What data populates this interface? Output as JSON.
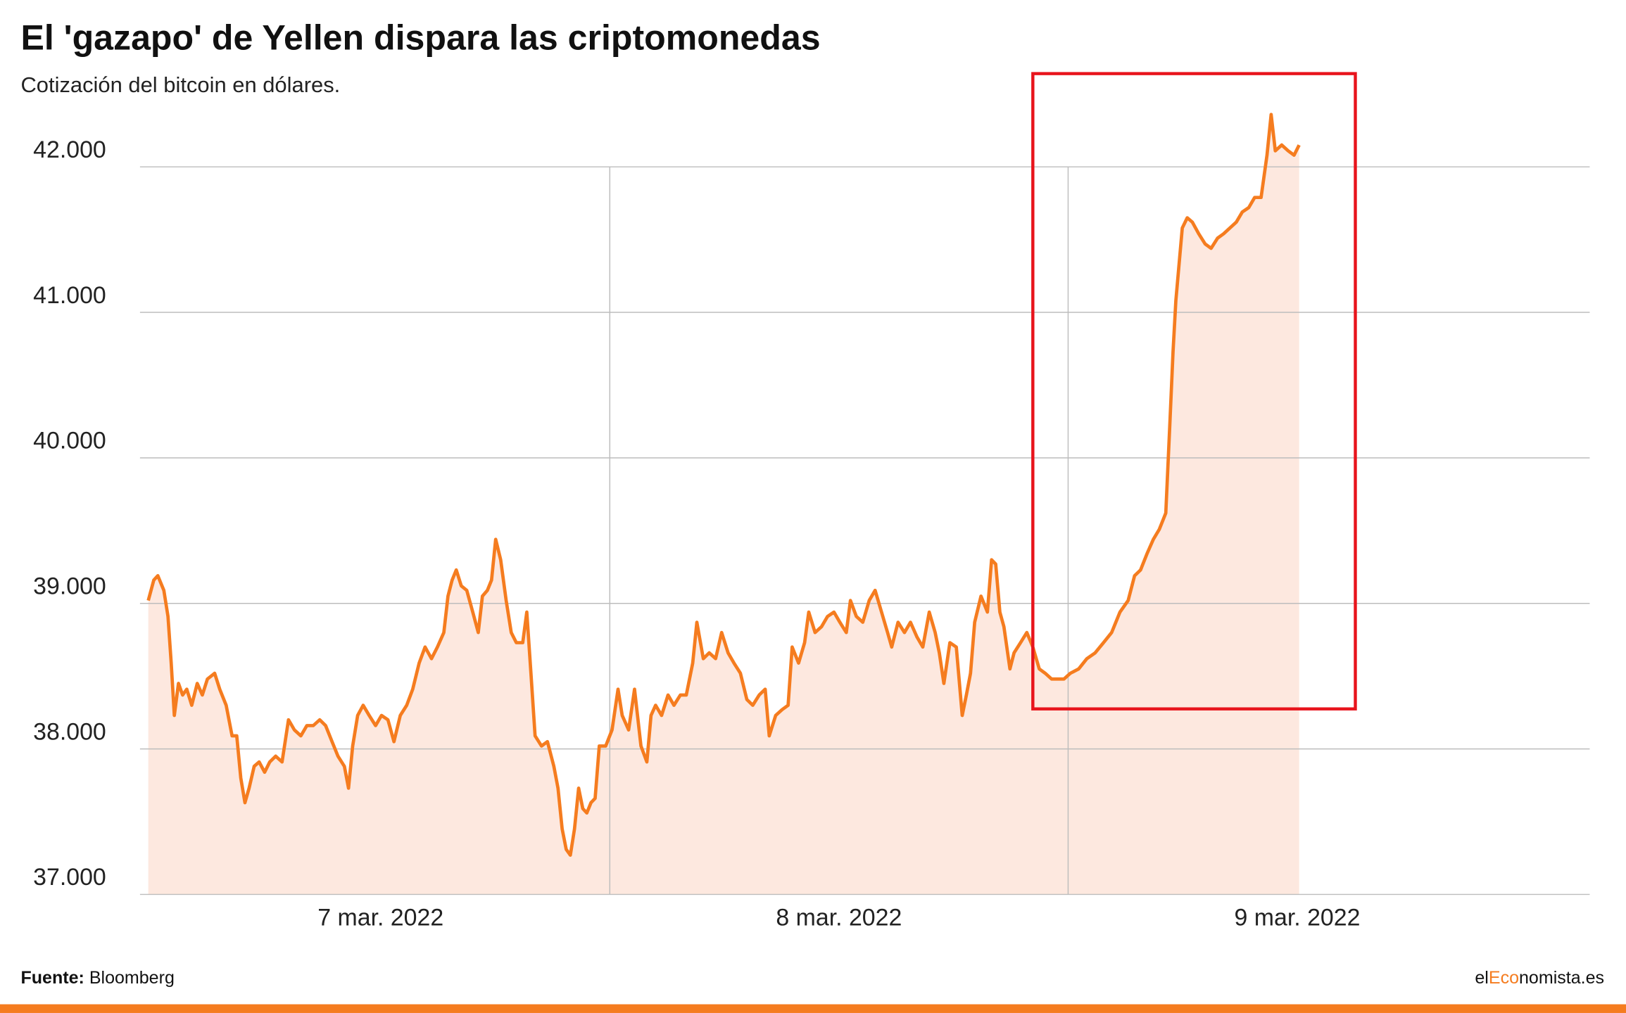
{
  "chart_data": {
    "type": "line",
    "title": "El 'gazapo' de Yellen dispara las criptomonedas",
    "subtitle": "Cotización del bitcoin en dólares.",
    "color": "#f57c1f",
    "fill_color": "#fde8df",
    "grid": true,
    "xlim": [
      -0.025,
      3.138
    ],
    "xticks": [
      {
        "value": 0.5,
        "label": "7 mar. 2022"
      },
      {
        "value": 1.5,
        "label": "8 mar. 2022"
      },
      {
        "value": 2.5,
        "label": "9 mar. 2022"
      }
    ],
    "xgrid": [
      1,
      2
    ],
    "ylim": [
      37000,
      42450
    ],
    "yticks": [
      {
        "value": 37000,
        "label": "37.000"
      },
      {
        "value": 38000,
        "label": "38.000"
      },
      {
        "value": 39000,
        "label": "39.000"
      },
      {
        "value": 40000,
        "label": "40.000"
      },
      {
        "value": 41000,
        "label": "41.000"
      },
      {
        "value": 42000,
        "label": "42.000"
      }
    ],
    "x": [
      -0.007,
      0.005,
      0.014,
      0.027,
      0.036,
      0.043,
      0.05,
      0.059,
      0.068,
      0.077,
      0.088,
      0.1,
      0.111,
      0.122,
      0.138,
      0.149,
      0.163,
      0.176,
      0.186,
      0.195,
      0.204,
      0.213,
      0.224,
      0.235,
      0.247,
      0.258,
      0.271,
      0.285,
      0.299,
      0.312,
      0.326,
      0.339,
      0.353,
      0.367,
      0.38,
      0.394,
      0.407,
      0.421,
      0.43,
      0.439,
      0.45,
      0.462,
      0.475,
      0.489,
      0.502,
      0.516,
      0.529,
      0.543,
      0.557,
      0.57,
      0.584,
      0.597,
      0.611,
      0.624,
      0.638,
      0.647,
      0.656,
      0.665,
      0.676,
      0.688,
      0.701,
      0.713,
      0.722,
      0.733,
      0.742,
      0.751,
      0.762,
      0.774,
      0.785,
      0.796,
      0.81,
      0.819,
      0.828,
      0.837,
      0.851,
      0.864,
      0.878,
      0.887,
      0.896,
      0.905,
      0.914,
      0.923,
      0.932,
      0.941,
      0.95,
      0.959,
      0.968,
      0.977,
      0.991,
      1.005,
      1.018,
      1.027,
      1.041,
      1.054,
      1.068,
      1.081,
      1.09,
      1.1,
      1.113,
      1.127,
      1.14,
      1.154,
      1.167,
      1.181,
      1.19,
      1.204,
      1.217,
      1.231,
      1.244,
      1.258,
      1.271,
      1.285,
      1.299,
      1.312,
      1.326,
      1.339,
      1.348,
      1.362,
      1.376,
      1.389,
      1.398,
      1.412,
      1.425,
      1.434,
      1.448,
      1.462,
      1.475,
      1.489,
      1.502,
      1.516,
      1.525,
      1.538,
      1.552,
      1.566,
      1.579,
      1.593,
      1.606,
      1.615,
      1.629,
      1.643,
      1.656,
      1.67,
      1.683,
      1.697,
      1.71,
      1.719,
      1.729,
      1.742,
      1.756,
      1.769,
      1.778,
      1.787,
      1.796,
      1.81,
      1.824,
      1.833,
      1.842,
      1.851,
      1.86,
      1.873,
      1.882,
      1.896,
      1.91,
      1.923,
      1.937,
      1.95,
      1.964,
      1.977,
      1.991,
      2.005,
      2.023,
      2.041,
      2.059,
      2.077,
      2.095,
      2.113,
      2.131,
      2.145,
      2.158,
      2.172,
      2.186,
      2.199,
      2.213,
      2.222,
      2.229,
      2.235,
      2.242,
      2.249,
      2.26,
      2.271,
      2.285,
      2.299,
      2.312,
      2.326,
      2.339,
      2.353,
      2.367,
      2.38,
      2.394,
      2.407,
      2.421,
      2.434,
      2.443,
      2.452,
      2.466,
      2.48,
      2.493,
      2.504
    ],
    "values": [
      39020,
      39160,
      39190,
      39090,
      38910,
      38590,
      38230,
      38450,
      38370,
      38410,
      38300,
      38450,
      38370,
      38480,
      38520,
      38410,
      38300,
      38090,
      38090,
      37800,
      37630,
      37730,
      37880,
      37910,
      37840,
      37910,
      37950,
      37910,
      38200,
      38130,
      38090,
      38160,
      38160,
      38200,
      38160,
      38050,
      37950,
      37880,
      37730,
      38020,
      38230,
      38300,
      38230,
      38160,
      38230,
      38200,
      38050,
      38230,
      38300,
      38410,
      38590,
      38700,
      38620,
      38700,
      38800,
      39050,
      39160,
      39230,
      39120,
      39090,
      38940,
      38800,
      39050,
      39090,
      39160,
      39440,
      39300,
      39020,
      38800,
      38730,
      38730,
      38940,
      38520,
      38090,
      38020,
      38050,
      37880,
      37730,
      37450,
      37310,
      37270,
      37450,
      37730,
      37590,
      37560,
      37630,
      37660,
      38020,
      38020,
      38130,
      38410,
      38230,
      38130,
      38410,
      38020,
      37910,
      38230,
      38300,
      38230,
      38370,
      38300,
      38370,
      38370,
      38590,
      38870,
      38620,
      38660,
      38620,
      38800,
      38660,
      38590,
      38520,
      38340,
      38300,
      38370,
      38410,
      38090,
      38230,
      38270,
      38300,
      38700,
      38590,
      38730,
      38940,
      38800,
      38840,
      38910,
      38940,
      38870,
      38800,
      39020,
      38910,
      38870,
      39020,
      39090,
      38940,
      38800,
      38700,
      38870,
      38800,
      38870,
      38770,
      38700,
      38940,
      38800,
      38660,
      38450,
      38730,
      38700,
      38230,
      38370,
      38520,
      38870,
      39050,
      38940,
      39300,
      39270,
      38940,
      38840,
      38550,
      38660,
      38730,
      38800,
      38700,
      38550,
      38520,
      38480,
      38480,
      38480,
      38520,
      38550,
      38620,
      38660,
      38730,
      38800,
      38940,
      39020,
      39190,
      39230,
      39340,
      39440,
      39510,
      39620,
      40230,
      40730,
      41080,
      41330,
      41580,
      41650,
      41620,
      41540,
      41470,
      41440,
      41510,
      41540,
      41580,
      41620,
      41690,
      41720,
      41790,
      41790,
      42080,
      42360,
      42110,
      42150,
      42110,
      42080,
      42150
    ]
  },
  "footer": {
    "source_label": "Fuente:",
    "source": "Bloomberg",
    "brand": [
      "el",
      "Eco",
      "nomista.es"
    ]
  }
}
